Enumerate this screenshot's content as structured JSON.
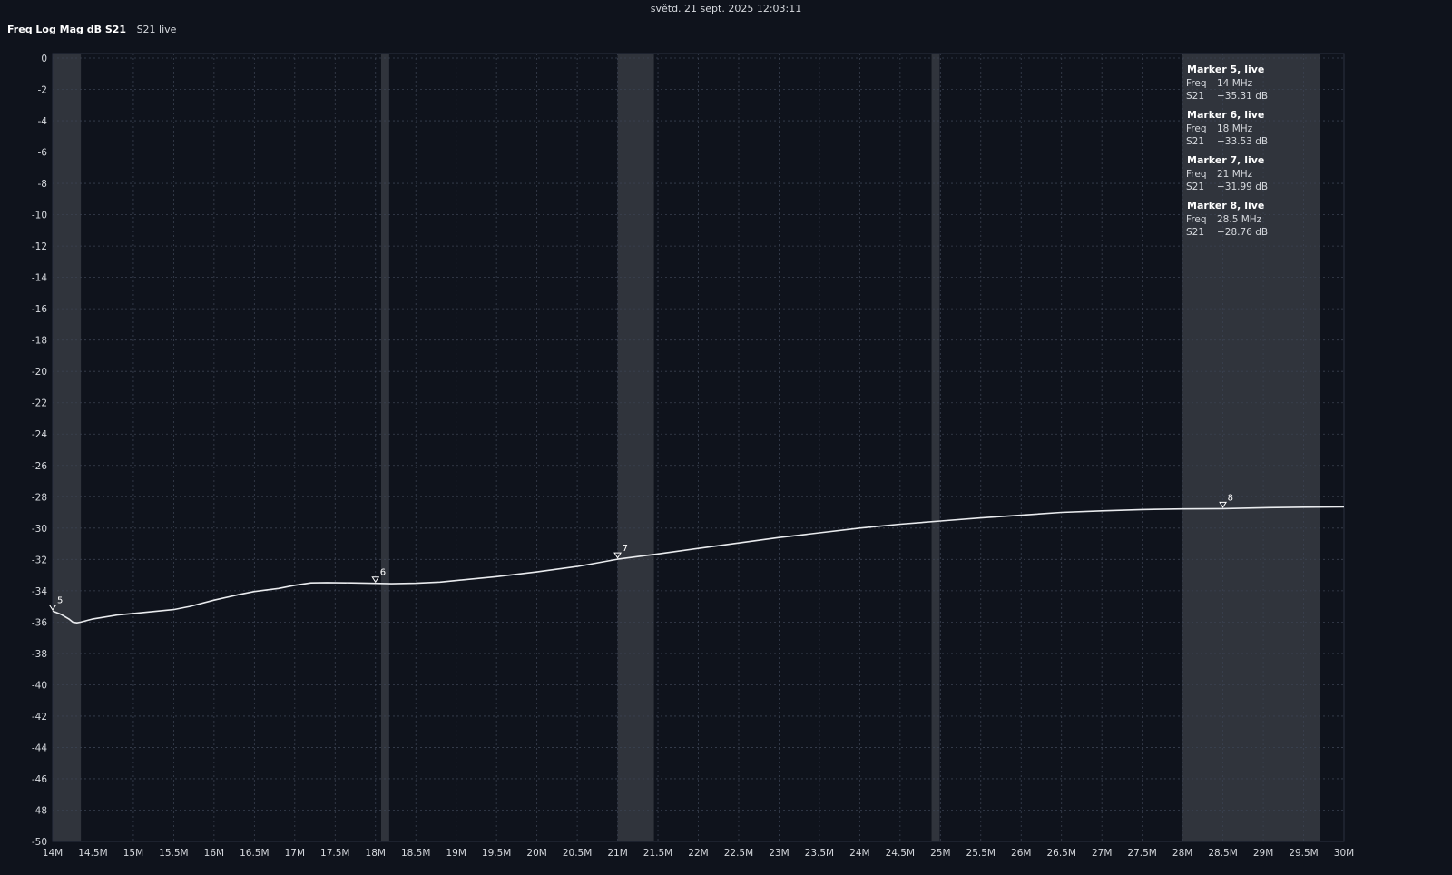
{
  "header": {
    "timestamp": "světd. 21 sept. 2025 12:03:11",
    "trace_title": "Freq Log Mag dB S21",
    "trace_status": "S21 live"
  },
  "colors": {
    "background": "#0f131c",
    "grid": "#3a4150",
    "trace": "#e9ebee",
    "band": "#30343c",
    "text": "#d6d9de"
  },
  "chart_data": {
    "type": "line",
    "title": "Freq Log Mag dB S21",
    "xlabel": "",
    "ylabel": "",
    "xunit": "MHz",
    "xlim": [
      14,
      30
    ],
    "ylim": [
      -50,
      0
    ],
    "grid": true,
    "x_ticks": [
      14,
      14.5,
      15,
      15.5,
      16,
      16.5,
      17,
      17.5,
      18,
      18.5,
      19,
      19.5,
      20,
      20.5,
      21,
      21.5,
      22,
      22.5,
      23,
      23.5,
      24,
      24.5,
      25,
      25.5,
      26,
      26.5,
      27,
      27.5,
      28,
      28.5,
      29,
      29.5,
      30
    ],
    "x_tick_labels": [
      "14M",
      "14.5M",
      "15M",
      "15.5M",
      "16M",
      "16.5M",
      "17M",
      "17.5M",
      "18M",
      "18.5M",
      "19M",
      "19.5M",
      "20M",
      "20.5M",
      "21M",
      "21.5M",
      "22M",
      "22.5M",
      "23M",
      "23.5M",
      "24M",
      "24.5M",
      "25M",
      "25.5M",
      "26M",
      "26.5M",
      "27M",
      "27.5M",
      "28M",
      "28.5M",
      "29M",
      "29.5M",
      "30M"
    ],
    "y_ticks": [
      0,
      -2,
      -4,
      -6,
      -8,
      -10,
      -12,
      -14,
      -16,
      -18,
      -20,
      -22,
      -24,
      -26,
      -28,
      -30,
      -32,
      -34,
      -36,
      -38,
      -40,
      -42,
      -44,
      -46,
      -48,
      -50
    ],
    "y_tick_labels": [
      "0",
      "-2",
      "-4",
      "-6",
      "-8",
      "-10",
      "-12",
      "-14",
      "-16",
      "-18",
      "-20",
      "-22",
      "-24",
      "-26",
      "-28",
      "-30",
      "-32",
      "-34",
      "-36",
      "-38",
      "-40",
      "-42",
      "-44",
      "-46",
      "-48",
      "-50"
    ],
    "bands": [
      [
        14,
        14.35
      ],
      [
        18.07,
        18.17
      ],
      [
        21,
        21.45
      ],
      [
        24.89,
        24.99
      ],
      [
        28,
        29.7
      ]
    ],
    "series": [
      {
        "x": [
          14,
          14.1,
          14.2,
          14.25,
          14.3,
          14.35,
          14.5,
          14.8,
          15.0,
          15.3,
          15.5,
          15.7,
          16.0,
          16.3,
          16.5,
          16.8,
          17.0,
          17.2,
          17.4,
          17.7,
          18.0,
          18.2,
          18.5,
          18.8,
          19.0,
          19.5,
          20.0,
          20.5,
          21.0,
          21.5,
          22.0,
          22.5,
          23.0,
          23.5,
          24.0,
          24.5,
          25.0,
          25.5,
          26.0,
          26.5,
          27.0,
          27.5,
          28.0,
          28.5,
          29.0,
          29.5,
          30.0
        ],
        "y": [
          -35.3,
          -35.5,
          -35.8,
          -36.0,
          -36.05,
          -36.0,
          -35.8,
          -35.55,
          -35.45,
          -35.3,
          -35.2,
          -35.0,
          -34.6,
          -34.25,
          -34.05,
          -33.85,
          -33.65,
          -33.5,
          -33.48,
          -33.5,
          -33.53,
          -33.55,
          -33.52,
          -33.45,
          -33.35,
          -33.1,
          -32.8,
          -32.45,
          -31.99,
          -31.65,
          -31.3,
          -30.95,
          -30.6,
          -30.3,
          -30.0,
          -29.75,
          -29.55,
          -29.35,
          -29.18,
          -29.0,
          -28.9,
          -28.82,
          -28.78,
          -28.76,
          -28.7,
          -28.67,
          -28.65
        ]
      }
    ],
    "markers": [
      {
        "id": "5",
        "x": 14,
        "y": -35.31
      },
      {
        "id": "6",
        "x": 18,
        "y": -33.53
      },
      {
        "id": "7",
        "x": 21,
        "y": -31.99
      },
      {
        "id": "8",
        "x": 28.5,
        "y": -28.76
      }
    ],
    "readouts": [
      {
        "title": "Marker 5, live",
        "freq_label": "Freq",
        "freq_value": "14 MHz",
        "param_label": "S21",
        "param_value": "−35.31 dB"
      },
      {
        "title": "Marker 6, live",
        "freq_label": "Freq",
        "freq_value": "18 MHz",
        "param_label": "S21",
        "param_value": "−33.53 dB"
      },
      {
        "title": "Marker 7, live",
        "freq_label": "Freq",
        "freq_value": "21 MHz",
        "param_label": "S21",
        "param_value": "−31.99 dB"
      },
      {
        "title": "Marker 8, live",
        "freq_label": "Freq",
        "freq_value": "28.5 MHz",
        "param_label": "S21",
        "param_value": "−28.76 dB"
      }
    ]
  }
}
